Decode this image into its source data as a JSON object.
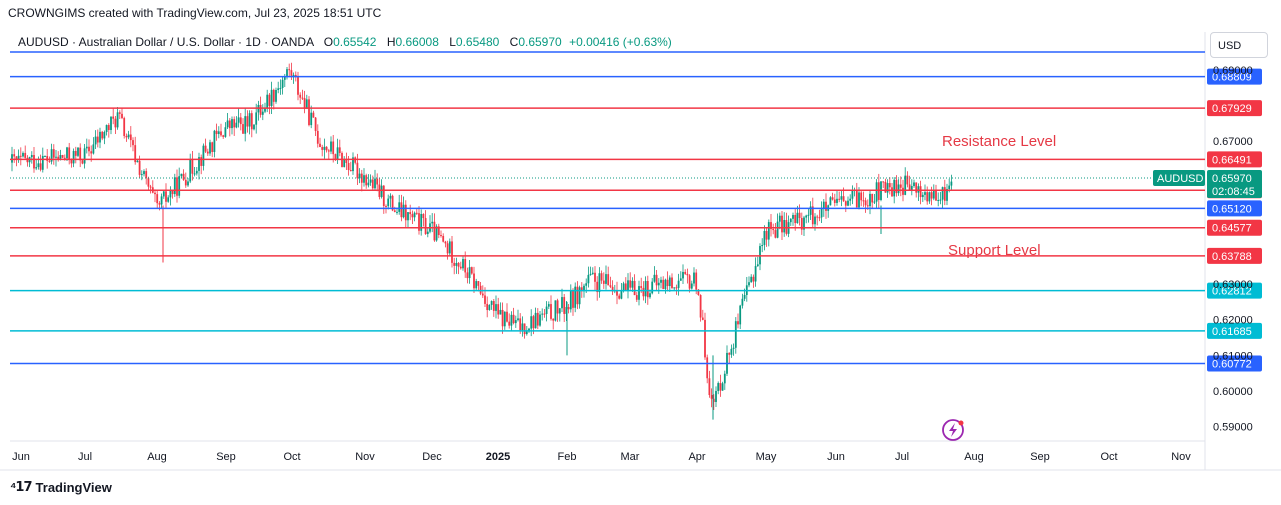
{
  "caption": "CROWNGIMS created with TradingView.com, Jul 23, 2025 18:51 UTC",
  "symbol_info": {
    "name": "AUDUSD · Australian Dollar / U.S. Dollar · 1D · OANDA",
    "open_label": "O",
    "open": "0.65542",
    "high_label": "H",
    "high": "0.66008",
    "low_label": "L",
    "low": "0.65480",
    "close_label": "C",
    "close": "0.65970",
    "change": "+0.00416 (+0.63%)"
  },
  "currency_button": "USD",
  "footer_brand": "TradingView",
  "colors": {
    "up": "#089981",
    "down": "#f23645",
    "blue_line": "#2962ff",
    "red_line": "#f23645",
    "cyan_line": "#00bcd4",
    "label_text": "#ffffff"
  },
  "chart_data": {
    "type": "candlestick",
    "y_axis_ticks": [
      "0.69000",
      "0.67000",
      "0.63000",
      "0.62000",
      "0.61000",
      "0.60000",
      "0.59000"
    ],
    "x_axis_ticks": [
      "Jun",
      "Jul",
      "Aug",
      "Sep",
      "Oct",
      "Nov",
      "Dec",
      "2025",
      "Feb",
      "Mar",
      "Apr",
      "May",
      "Jun",
      "Jul",
      "Aug",
      "Sep",
      "Oct",
      "Nov"
    ],
    "y_range": [
      0.586,
      0.695
    ],
    "horizontal_levels": [
      {
        "value": 0.68809,
        "label": "0.68809",
        "color": "#2962ff"
      },
      {
        "value": 0.67929,
        "label": "0.67929",
        "color": "#f23645"
      },
      {
        "value": 0.66491,
        "label": "0.66491",
        "color": "#f23645"
      },
      {
        "value": 0.65626,
        "label": "0.65626",
        "color": "#f23645"
      },
      {
        "value": 0.6512,
        "label": "0.65120",
        "color": "#2962ff"
      },
      {
        "value": 0.64577,
        "label": "0.64577",
        "color": "#f23645"
      },
      {
        "value": 0.63788,
        "label": "0.63788",
        "color": "#f23645"
      },
      {
        "value": 0.62812,
        "label": "0.62812",
        "color": "#00bcd4"
      },
      {
        "value": 0.61685,
        "label": "0.61685",
        "color": "#00bcd4"
      },
      {
        "value": 0.60772,
        "label": "0.60772",
        "color": "#2962ff"
      }
    ],
    "current_price": {
      "symbol": "AUDUSD",
      "value": 0.6597,
      "label": "0.65970",
      "countdown": "02:08:45"
    },
    "annotations": [
      "Resistance Level",
      "Support Level"
    ],
    "path_points": [
      [
        "Jun",
        0.664
      ],
      [
        "Jul",
        0.666
      ],
      [
        "Jul-mid",
        0.677
      ],
      [
        "Aug",
        0.651
      ],
      [
        "Aug-mid",
        0.657
      ],
      [
        "Sep",
        0.674
      ],
      [
        "Sep-mid",
        0.675
      ],
      [
        "Oct",
        0.69
      ],
      [
        "Oct-mid",
        0.67
      ],
      [
        "Nov",
        0.66
      ],
      [
        "Nov-mid",
        0.651
      ],
      [
        "Dec",
        0.645
      ],
      [
        "Dec-mid",
        0.636
      ],
      [
        "2025",
        0.621
      ],
      [
        "2025-mid",
        0.618
      ],
      [
        "Feb",
        0.624
      ],
      [
        "Feb-mid",
        0.631
      ],
      [
        "Mar",
        0.628
      ],
      [
        "Mar-mid",
        0.63
      ],
      [
        "Apr",
        0.631
      ],
      [
        "Apr-spike",
        0.595
      ],
      [
        "May",
        0.645
      ],
      [
        "May-mid",
        0.648
      ],
      [
        "Jun",
        0.652
      ],
      [
        "Jun-mid",
        0.655
      ],
      [
        "Jul",
        0.658
      ],
      [
        "Jul-mid",
        0.653
      ],
      [
        "last",
        0.6597
      ]
    ]
  }
}
